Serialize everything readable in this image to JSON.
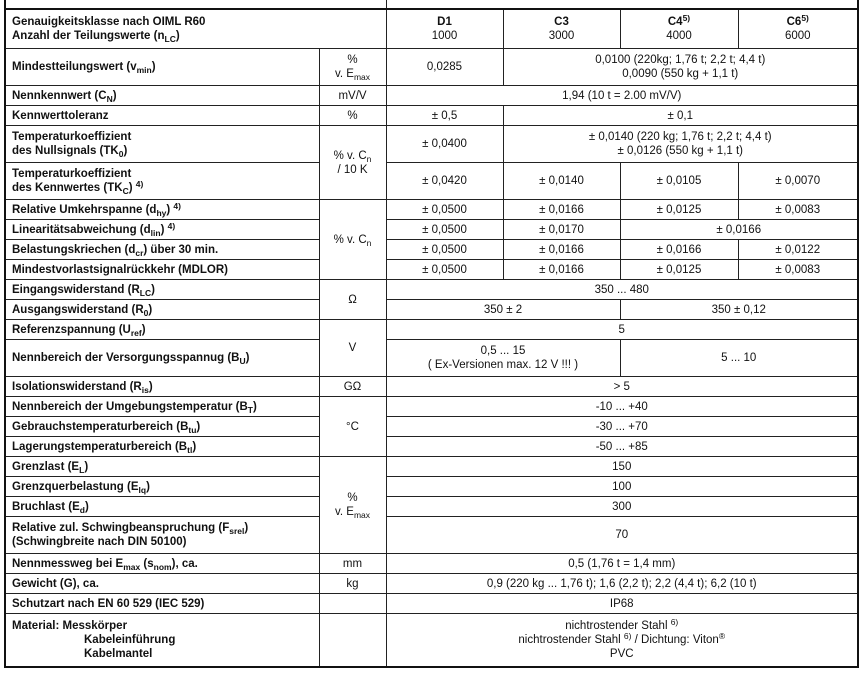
{
  "header": {
    "title1": "Genauigkeitsklasse nach OIML R60",
    "title2": "Anzahl der Teilungswerte (n",
    "title2_sub": "LC",
    "title2_end": ")",
    "classes": [
      {
        "name": "D1",
        "sup": "",
        "n": "1000"
      },
      {
        "name": "C3",
        "sup": "",
        "n": "3000"
      },
      {
        "name": "C4",
        "sup": "5)",
        "n": "4000"
      },
      {
        "name": "C6",
        "sup": "5)",
        "n": "6000"
      }
    ]
  },
  "rows": {
    "vmin": {
      "l": "Mindestteilungswert (v",
      "s": "min",
      "e": ")",
      "unit1": "%",
      "unit2": "v. E",
      "unit_sub": "max",
      "d1": "0,0285",
      "rest1": "0,0100 (220kg;  1,76 t;  2,2 t;  4,4 t)",
      "rest2": "0,0090 (550 kg  +  1,1 t)"
    },
    "cn": {
      "l": "Nennkennwert (C",
      "s": "N",
      "e": ")",
      "unit": "mV/V",
      "v": "1,94 (10 t = 2.00 mV/V)"
    },
    "tol": {
      "l": "Kennwerttoleranz",
      "unit": "%",
      "d1": "± 0,5",
      "rest": "± 0,1"
    },
    "tk0": {
      "l1": "Temperaturkoeffizient",
      "l2": "des Nullsignals (TK",
      "s": "0",
      "e": ")",
      "unit1": "% v. C",
      "unit_sub": "n",
      "unit2": "/ 10 K",
      "d1": "± 0,0400",
      "rest1": "± 0,0140 (220 kg;  1,76 t;  2,2 t;  4,4 t)",
      "rest2": "± 0,0126 (550 kg  +  1,1 t)"
    },
    "tkc": {
      "l1": "Temperaturkoeffizient",
      "l2": "des Kennwertes (TK",
      "s": "C",
      "e": ")",
      "sup": "4)",
      "v": [
        "± 0,0420",
        "± 0,0140",
        "± 0,0105",
        "± 0,0070"
      ]
    },
    "dhy": {
      "l": "Relative Umkehrspanne (d",
      "s": "hy",
      "e": ")",
      "sup": "4)",
      "unit": "% v. C",
      "unit_sub": "n",
      "v": [
        "± 0,0500",
        "± 0,0166",
        "± 0,0125",
        "± 0,0083"
      ]
    },
    "dlin": {
      "l": "Linearitätsabweichung (d",
      "s": "lin",
      "e": ")",
      "sup": "4)",
      "v": [
        "± 0,0500",
        "± 0,0170",
        "± 0,0166"
      ]
    },
    "dcr": {
      "l": "Belastungskriechen (d",
      "s": "cr",
      "e": ") über 30 min.",
      "v": [
        "± 0,0500",
        "± 0,0166",
        "± 0,0166",
        "± 0,0122"
      ]
    },
    "mdlor": {
      "l": "Mindestvorlastsignalrückkehr (MDLOR)",
      "v": [
        "± 0,0500",
        "± 0,0166",
        "± 0,0125",
        "± 0,0083"
      ]
    },
    "rlc": {
      "l": "Eingangswiderstand (R",
      "s": "LC",
      "e": ")",
      "unit": "Ω",
      "v": "350 ... 480"
    },
    "r0": {
      "l": "Ausgangswiderstand (R",
      "s": "0",
      "e": ")",
      "v": [
        "350  ± 2",
        "350  ± 0,12"
      ]
    },
    "uref": {
      "l": "Referenzspannung (U",
      "s": "ref",
      "e": ")",
      "unit": "V",
      "v": "5"
    },
    "bu": {
      "l": "Nennbereich der Versorgungsspannug (B",
      "s": "U",
      "e": ")",
      "v1": "0,5 ... 15",
      "v1b": "( Ex-Versionen max. 12 V !!! )",
      "v2": "5 ... 10"
    },
    "ris": {
      "l": "Isolationswiderstand (R",
      "s": "is",
      "e": ")",
      "unit": "GΩ",
      "v": "> 5"
    },
    "bt": {
      "l": "Nennbereich der Umgebungstemperatur (B",
      "s": "T",
      "e": ")",
      "unit": "°C",
      "v": "-10 ... +40"
    },
    "btu": {
      "l": "Gebrauchstemperaturbereich (B",
      "s": "tu",
      "e": ")",
      "v": "-30 ... +70"
    },
    "btl": {
      "l": "Lagerungstemperaturbereich (B",
      "s": "tl",
      "e": ")",
      "v": "-50 ... +85"
    },
    "el": {
      "l": "Grenzlast (E",
      "s": "L",
      "e": ")",
      "unit1": "%",
      "unit2": "v. E",
      "unit_sub": "max",
      "v": "150"
    },
    "elq": {
      "l": "Grenzquerbelastung (E",
      "s": "lq",
      "e": ")",
      "v": "100"
    },
    "ed": {
      "l": "Bruchlast (E",
      "s": "d",
      "e": ")",
      "v": "300"
    },
    "fsrel": {
      "l1": "Relative zul. Schwingbeanspruchung (F",
      "s": "srel",
      "e": ")",
      "l2": "(Schwingbreite nach DIN 50100)",
      "v": "70"
    },
    "snom": {
      "l": "Nennmessweg bei E",
      "s1": "max",
      "m": " (s",
      "s": "nom",
      "e": "), ca.",
      "unit": "mm",
      "v": "0,5 (1,76 t = 1,4 mm)"
    },
    "g": {
      "l": "Gewicht (G), ca.",
      "unit": "kg",
      "v": "0,9 (220 kg ... 1,76 t);   1,6 (2,2 t);   2,2 (4,4 t);   6,2 (10 t)"
    },
    "ip": {
      "l": "Schutzart nach EN 60 529 (IEC 529)",
      "v": "IP68"
    },
    "mat": {
      "l1": "Material:  Messkörper",
      "l2": "Kabeleinführung",
      "l3": "Kabelmantel",
      "v1": "nichtrostender Stahl ",
      "v1sup": "6)",
      "v2": "nichtrostender Stahl ",
      "v2sup": "6)",
      "v2b": "  /  Dichtung: Viton",
      "v2reg": "®",
      "v3": "PVC"
    }
  }
}
